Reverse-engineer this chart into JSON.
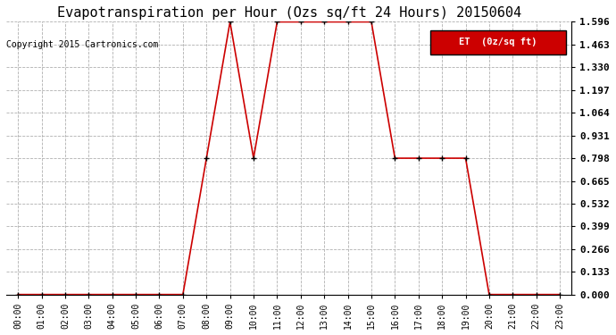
{
  "title": "Evapotranspiration per Hour (Ozs sq/ft 24 Hours) 20150604",
  "copyright": "Copyright 2015 Cartronics.com",
  "legend_label": "ET  (0z/sq ft)",
  "x_labels": [
    "00:00",
    "01:00",
    "02:00",
    "03:00",
    "04:00",
    "05:00",
    "06:00",
    "07:00",
    "08:00",
    "09:00",
    "10:00",
    "11:00",
    "12:00",
    "13:00",
    "14:00",
    "15:00",
    "16:00",
    "17:00",
    "18:00",
    "19:00",
    "20:00",
    "21:00",
    "22:00",
    "23:00"
  ],
  "y_values": [
    0.0,
    0.0,
    0.0,
    0.0,
    0.0,
    0.0,
    0.0,
    0.0,
    0.798,
    1.596,
    0.798,
    1.596,
    1.596,
    1.596,
    1.596,
    1.596,
    0.798,
    0.798,
    0.798,
    0.798,
    0.0,
    0.0,
    0.0,
    0.0
  ],
  "y_ticks": [
    0.0,
    0.133,
    0.266,
    0.399,
    0.532,
    0.665,
    0.798,
    0.931,
    1.064,
    1.197,
    1.33,
    1.463,
    1.596
  ],
  "ylim": [
    0.0,
    1.596
  ],
  "line_color": "#cc0000",
  "marker_color": "#000000",
  "bg_color": "#ffffff",
  "grid_color": "#b0b0b0",
  "title_fontsize": 11,
  "legend_bg": "#cc0000",
  "legend_text_color": "#ffffff",
  "fig_width": 6.9,
  "fig_height": 3.75,
  "dpi": 100
}
